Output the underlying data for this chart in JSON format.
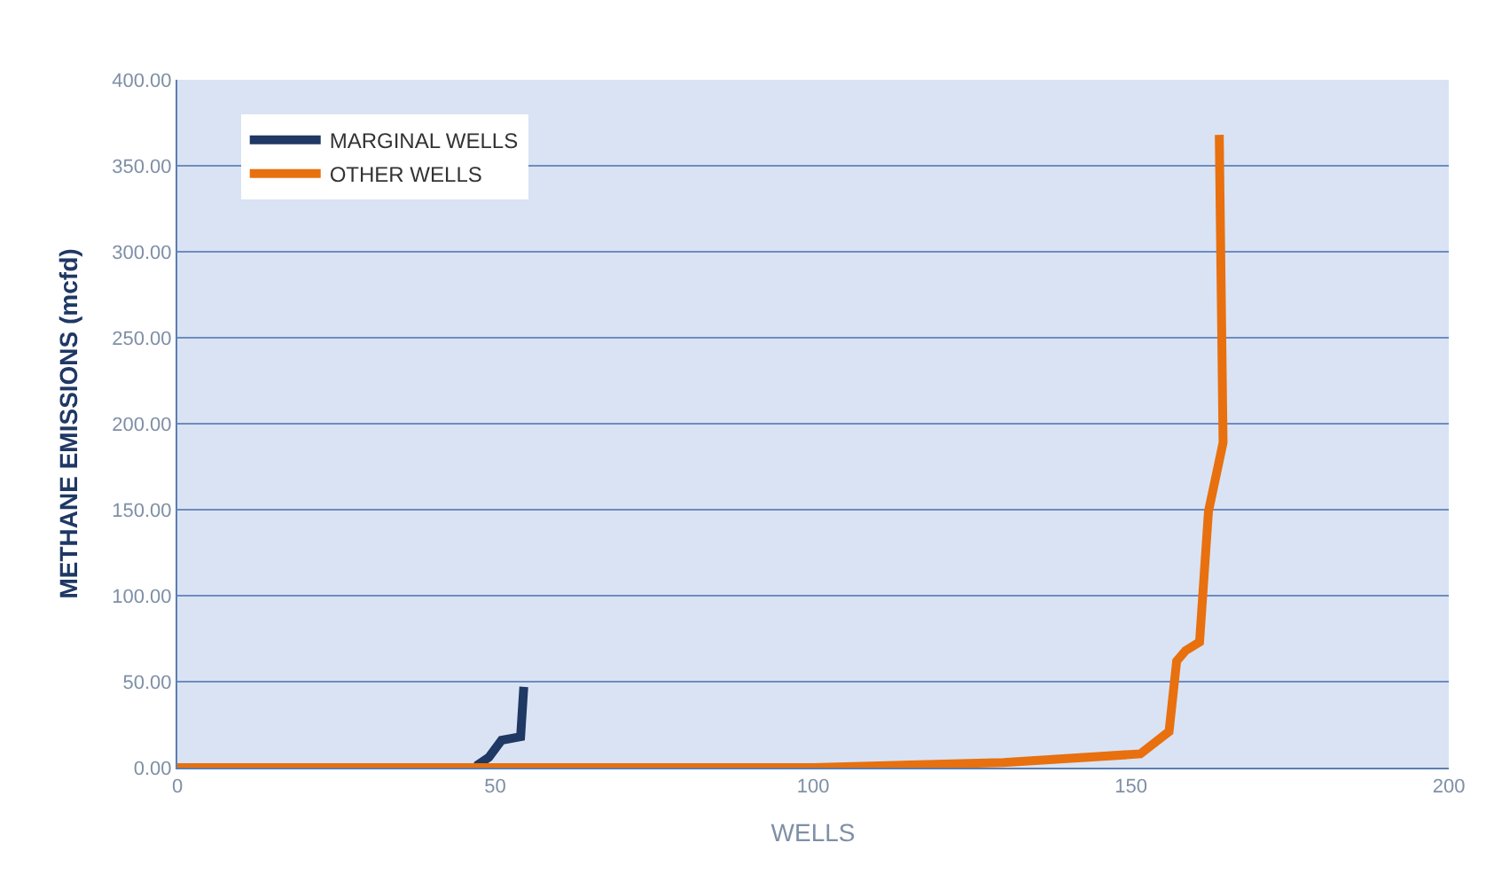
{
  "chart_data": {
    "type": "line",
    "xlabel": "WELLS",
    "ylabel": "METHANE EMISSIONS (mcfd)",
    "xlim": [
      0,
      200
    ],
    "xticks": [
      0,
      50,
      100,
      150,
      200
    ],
    "ylim": [
      0,
      400
    ],
    "yticks": [
      {
        "value": 0,
        "label": "0.00"
      },
      {
        "value": 50,
        "label": "50.00"
      },
      {
        "value": 100,
        "label": "100.00"
      },
      {
        "value": 150,
        "label": "150.00"
      },
      {
        "value": 200,
        "label": "200.00"
      },
      {
        "value": 250,
        "label": "250.00"
      },
      {
        "value": 300,
        "label": "300.00"
      },
      {
        "value": 350,
        "label": "350.00"
      },
      {
        "value": 400,
        "label": "400.00"
      }
    ],
    "grid": "y",
    "legend": "top left",
    "marker": "none",
    "line_style": "solid",
    "series": [
      {
        "name": "MARGINAL WELLS",
        "color": "#1f3864",
        "x": [
          47,
          49,
          51,
          54,
          54.5
        ],
        "values": [
          1,
          6,
          16,
          18,
          47
        ]
      },
      {
        "name": "OTHER WELLS",
        "color": "#e8700e",
        "x": [
          0,
          100,
          130,
          151.5,
          156,
          157.2,
          158.6,
          160.8,
          162.2,
          164.5,
          163.9
        ],
        "values": [
          0,
          0,
          3,
          8,
          21,
          62,
          68,
          73,
          149,
          189,
          368
        ]
      }
    ]
  }
}
